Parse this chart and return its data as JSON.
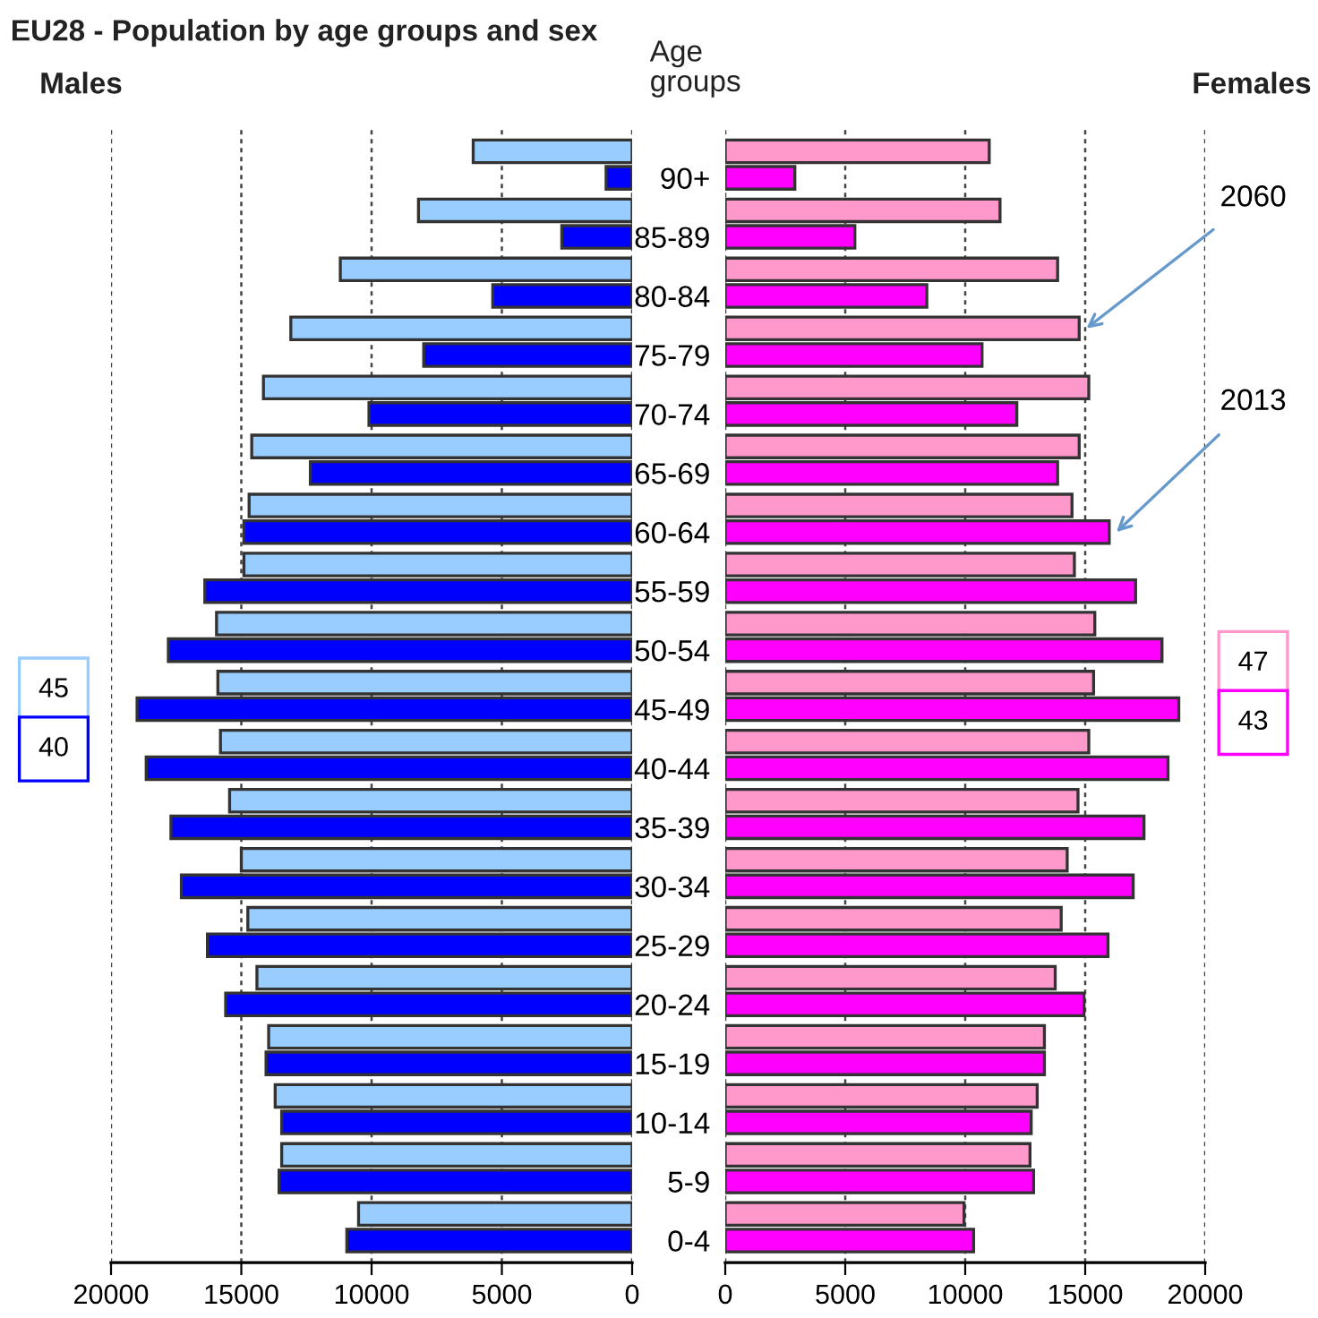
{
  "chart_data": [
    {
      "type": "bar",
      "orientation": "horizontal",
      "title": "EU28 - Population by age groups and sex",
      "subtitle": "Males",
      "categories": [
        null,
        null,
        null,
        null,
        null,
        null,
        null,
        null,
        null,
        null,
        null,
        null,
        null,
        null,
        null,
        null,
        null,
        null,
        null
      ],
      "series": [
        {
          "color": "#99ccff",
          "values": [
            6100,
            8200,
            11200,
            13100,
            14150,
            14600,
            14700,
            14900,
            15950,
            15900,
            15800,
            15450,
            15000,
            14750,
            14400,
            13950,
            13700,
            13450,
            10500
          ]
        },
        {
          "color": "#0000ff",
          "values": [
            1000,
            2700,
            5350,
            8000,
            10100,
            12350,
            14900,
            16400,
            17800,
            19000,
            18650,
            17700,
            17300,
            16300,
            15600,
            14050,
            13450,
            13550,
            10950
          ]
        }
      ],
      "xlim": [
        20000,
        0
      ],
      "xticks": [
        20000,
        15000,
        10000,
        5000,
        0
      ],
      "grid": "x",
      "legend": false,
      "tick_labels": "x",
      "annotations": [
        "45",
        "40"
      ]
    },
    {
      "type": "bar",
      "orientation": "horizontal",
      "title": "Females",
      "ylabel": "Age groups",
      "categories": [
        "90+",
        "85-89",
        "80-84",
        "75-79",
        "70-74",
        "65-69",
        "60-64",
        "55-59",
        "50-54",
        "45-49",
        "40-44",
        "35-39",
        "30-34",
        "25-29",
        "20-24",
        "15-19",
        "10-14",
        "5-9",
        "0-4"
      ],
      "series": [
        {
          "name": "2060",
          "color": "#ff99cc",
          "values": [
            11000,
            11450,
            13850,
            14750,
            15150,
            14750,
            14450,
            14550,
            15400,
            15350,
            15150,
            14700,
            14250,
            14000,
            13750,
            13300,
            13000,
            12700,
            9950
          ]
        },
        {
          "name": "2013",
          "color": "#ff00ff",
          "values": [
            2900,
            5400,
            8400,
            10700,
            12150,
            13850,
            16000,
            17100,
            18200,
            18900,
            18450,
            17450,
            17000,
            15950,
            14950,
            13300,
            12750,
            12850,
            10350
          ]
        }
      ],
      "xlim": [
        0,
        20000
      ],
      "xticks": [
        0,
        5000,
        10000,
        15000,
        20000
      ],
      "grid": "x",
      "legend": false,
      "annotations": [
        "47",
        "43"
      ]
    }
  ]
}
